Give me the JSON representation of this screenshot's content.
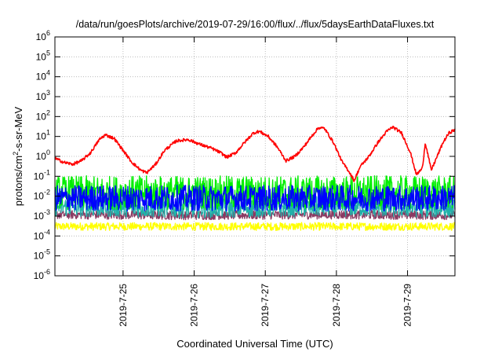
{
  "chart_data": {
    "type": "line",
    "title": "/data/run/goesPlots/archive/2019-07-29/16:00/flux/../flux/5daysEarthDataFluxes.txt",
    "xlabel": "Coordinated Universal Time (UTC)",
    "ylabel": {
      "pre": "protons/cm",
      "sup": "2",
      "post": "-s-sr-MeV"
    },
    "y_scale": "log",
    "ylim": [
      1e-06,
      1000000.0
    ],
    "y_ticks": [
      {
        "value": 1e-06,
        "base": "10",
        "exp": "-6"
      },
      {
        "value": 1e-05,
        "base": "10",
        "exp": "-5"
      },
      {
        "value": 0.0001,
        "base": "10",
        "exp": "-4"
      },
      {
        "value": 0.001,
        "base": "10",
        "exp": "-3"
      },
      {
        "value": 0.01,
        "base": "10",
        "exp": "-2"
      },
      {
        "value": 0.1,
        "base": "10",
        "exp": "-1"
      },
      {
        "value": 1.0,
        "base": "10",
        "exp": "0"
      },
      {
        "value": 10.0,
        "base": "10",
        "exp": "1"
      },
      {
        "value": 100.0,
        "base": "10",
        "exp": "2"
      },
      {
        "value": 1000.0,
        "base": "10",
        "exp": "3"
      },
      {
        "value": 10000.0,
        "base": "10",
        "exp": "4"
      },
      {
        "value": 100000.0,
        "base": "10",
        "exp": "5"
      },
      {
        "value": 1000000.0,
        "base": "10",
        "exp": "6"
      }
    ],
    "xlim": [
      "2019-07-24 01:00",
      "2019-07-29 16:00"
    ],
    "x_ticks": [
      {
        "value": "2019-07-25 00:00",
        "label": "2019-7-25"
      },
      {
        "value": "2019-07-26 00:00",
        "label": "2019-7-26"
      },
      {
        "value": "2019-07-27 00:00",
        "label": "2019-7-27"
      },
      {
        "value": "2019-07-28 00:00",
        "label": "2019-7-28"
      },
      {
        "value": "2019-07-29 00:00",
        "label": "2019-7-29"
      }
    ],
    "grid": true,
    "legend": "none",
    "series": [
      {
        "color": "#ffff00",
        "points": [
          [
            "2019-07-24 01:00",
            0.0003
          ],
          [
            "2019-07-26 00:00",
            0.0003
          ],
          [
            "2019-07-28 00:00",
            0.0003
          ],
          [
            "2019-07-29 16:00",
            0.0003
          ]
        ],
        "noise_band": [
          0.0002,
          0.0005
        ]
      },
      {
        "color": "#8b3a62",
        "points": [
          [
            "2019-07-24 01:00",
            0.0012
          ],
          [
            "2019-07-26 00:00",
            0.0011
          ],
          [
            "2019-07-28 00:00",
            0.0012
          ],
          [
            "2019-07-29 16:00",
            0.0011
          ]
        ],
        "noise_band": [
          0.0007,
          0.002
        ]
      },
      {
        "color": "#20b2aa",
        "points": [
          [
            "2019-07-24 01:00",
            0.003
          ],
          [
            "2019-07-26 00:00",
            0.0025
          ],
          [
            "2019-07-28 00:00",
            0.003
          ],
          [
            "2019-07-29 16:00",
            0.0025
          ]
        ],
        "noise_band": [
          0.001,
          0.01
        ]
      },
      {
        "color": "#00ee00",
        "points": [
          [
            "2019-07-24 01:00",
            0.015
          ],
          [
            "2019-07-26 00:00",
            0.015
          ],
          [
            "2019-07-28 00:00",
            0.015
          ],
          [
            "2019-07-29 16:00",
            0.015
          ]
        ],
        "noise_band": [
          0.002,
          0.1
        ]
      },
      {
        "color": "#0000ff",
        "points": [
          [
            "2019-07-24 01:00",
            0.008
          ],
          [
            "2019-07-26 00:00",
            0.008
          ],
          [
            "2019-07-28 00:00",
            0.008
          ],
          [
            "2019-07-29 16:00",
            0.008
          ]
        ],
        "noise_band": [
          0.002,
          0.04
        ]
      },
      {
        "color": "#ff0000",
        "points": [
          [
            "2019-07-24 01:00",
            0.8
          ],
          [
            "2019-07-24 04:00",
            0.5
          ],
          [
            "2019-07-24 07:00",
            0.4
          ],
          [
            "2019-07-24 10:00",
            0.6
          ],
          [
            "2019-07-24 13:00",
            1.5
          ],
          [
            "2019-07-24 16:00",
            7
          ],
          [
            "2019-07-24 18:00",
            12
          ],
          [
            "2019-07-24 21:00",
            8
          ],
          [
            "2019-07-25 00:00",
            2
          ],
          [
            "2019-07-25 03:00",
            0.5
          ],
          [
            "2019-07-25 06:00",
            0.2
          ],
          [
            "2019-07-25 08:00",
            0.15
          ],
          [
            "2019-07-25 11:00",
            0.4
          ],
          [
            "2019-07-25 14:00",
            2
          ],
          [
            "2019-07-25 18:00",
            6
          ],
          [
            "2019-07-25 22:00",
            7
          ],
          [
            "2019-07-26 02:00",
            4
          ],
          [
            "2019-07-26 06:00",
            2.5
          ],
          [
            "2019-07-26 09:00",
            1.5
          ],
          [
            "2019-07-26 11:00",
            0.9
          ],
          [
            "2019-07-26 14:00",
            1.5
          ],
          [
            "2019-07-26 17:00",
            5
          ],
          [
            "2019-07-26 20:00",
            15
          ],
          [
            "2019-07-26 22:00",
            18
          ],
          [
            "2019-07-27 01:00",
            10
          ],
          [
            "2019-07-27 04:00",
            3
          ],
          [
            "2019-07-27 07:00",
            0.6
          ],
          [
            "2019-07-27 10:00",
            1
          ],
          [
            "2019-07-27 13:00",
            3
          ],
          [
            "2019-07-27 16:00",
            12
          ],
          [
            "2019-07-27 18:00",
            28
          ],
          [
            "2019-07-27 20:00",
            25
          ],
          [
            "2019-07-27 23:00",
            5
          ],
          [
            "2019-07-28 02:00",
            0.5
          ],
          [
            "2019-07-28 04:00",
            0.2
          ],
          [
            "2019-07-28 06:00",
            0.06
          ],
          [
            "2019-07-28 08:00",
            0.3
          ],
          [
            "2019-07-28 11:00",
            1
          ],
          [
            "2019-07-28 14:00",
            5
          ],
          [
            "2019-07-28 17:00",
            18
          ],
          [
            "2019-07-28 19:00",
            30
          ],
          [
            "2019-07-28 22:00",
            15
          ],
          [
            "2019-07-29 01:00",
            1.5
          ],
          [
            "2019-07-29 03:00",
            0.12
          ],
          [
            "2019-07-29 05:00",
            0.25
          ],
          [
            "2019-07-29 06:00",
            5
          ],
          [
            "2019-07-29 08:00",
            0.2
          ],
          [
            "2019-07-29 10:00",
            1
          ],
          [
            "2019-07-29 12:00",
            5
          ],
          [
            "2019-07-29 14:00",
            15
          ],
          [
            "2019-07-29 16:00",
            22
          ]
        ],
        "noise_band": [
          0.7,
          1.4
        ]
      }
    ]
  }
}
